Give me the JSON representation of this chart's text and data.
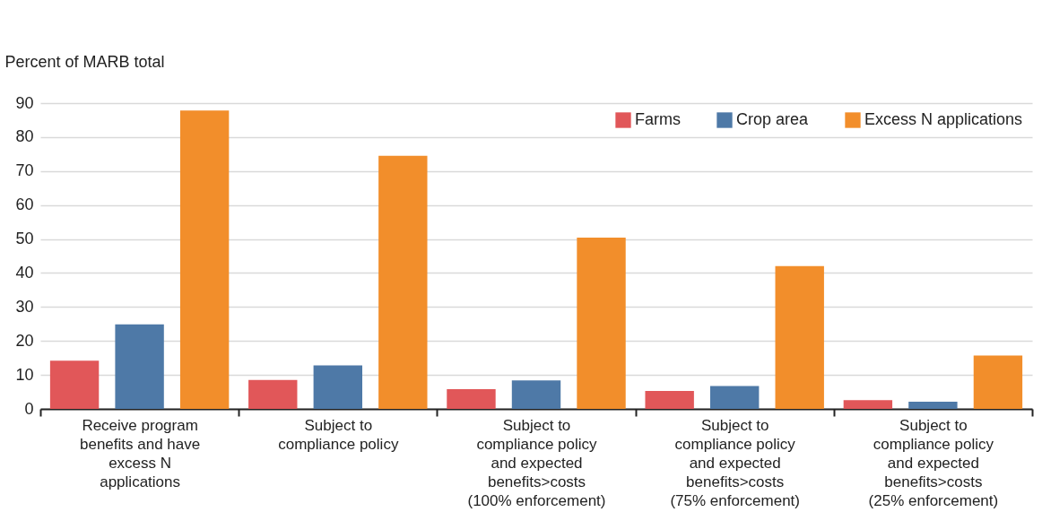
{
  "chart_data": {
    "type": "bar",
    "ylabel": "Percent of MARB total",
    "categories": [
      "Receive program benefits and have excess N applications",
      "Subject to compliance policy",
      "Subject to compliance policy and expected benefits>costs (100% enforcement)",
      "Subject to compliance policy and expected benefits>costs (75% enforcement)",
      "Subject to compliance policy and expected benefits>costs (25% enforcement)"
    ],
    "series": [
      {
        "name": "Farms",
        "color": "#e15759",
        "values": [
          14.2,
          8.5,
          5.8,
          5.3,
          2.6
        ]
      },
      {
        "name": "Crop area",
        "color": "#4e79a7",
        "values": [
          24.9,
          12.8,
          8.4,
          6.7,
          2.1
        ]
      },
      {
        "name": "Excess N applications",
        "color": "#f28e2b",
        "values": [
          87.8,
          74.5,
          50.4,
          42.0,
          15.7
        ]
      }
    ],
    "ylim": [
      0,
      90
    ],
    "yticks": [
      0,
      10,
      20,
      30,
      40,
      50,
      60,
      70,
      80,
      90
    ],
    "grid": "y",
    "legend": "top right"
  }
}
